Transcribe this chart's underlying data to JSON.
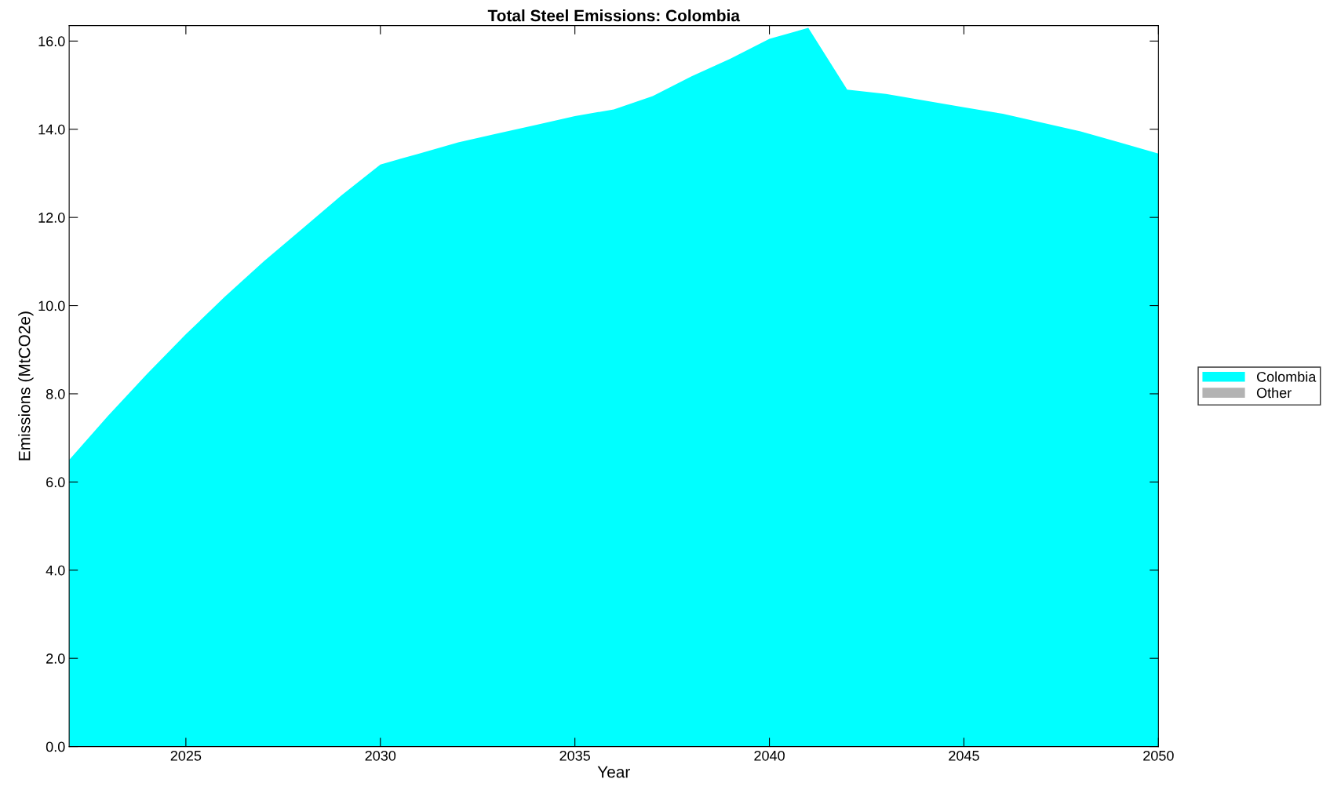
{
  "chart_data": {
    "type": "area",
    "title": "Total Steel Emissions: Colombia",
    "xlabel": "Year",
    "ylabel": "Emissions (MtCO2e)",
    "x": [
      2022,
      2023,
      2024,
      2025,
      2026,
      2027,
      2028,
      2029,
      2030,
      2031,
      2032,
      2033,
      2034,
      2035,
      2036,
      2037,
      2038,
      2039,
      2040,
      2041,
      2042,
      2043,
      2044,
      2045,
      2046,
      2047,
      2048,
      2049,
      2050
    ],
    "series": [
      {
        "name": "Colombia",
        "color": "#00ffff",
        "values": [
          6.5,
          7.5,
          8.45,
          9.35,
          10.2,
          11.0,
          11.75,
          12.5,
          13.2,
          13.45,
          13.7,
          13.9,
          14.1,
          14.3,
          14.45,
          14.75,
          15.2,
          15.6,
          16.05,
          16.3,
          14.9,
          14.8,
          14.65,
          14.5,
          14.35,
          14.15,
          13.95,
          13.7,
          13.45
        ]
      },
      {
        "name": "Other",
        "color": "#b3b3b3",
        "values": [
          null,
          null,
          null,
          null,
          null,
          null,
          null,
          null,
          null,
          null,
          null,
          null,
          null,
          null,
          null,
          null,
          null,
          null,
          null,
          null,
          null,
          null,
          null,
          null,
          null,
          null,
          null,
          null,
          null
        ]
      }
    ],
    "xlim": [
      2022,
      2050
    ],
    "xticks": [
      2025,
      2030,
      2035,
      2040,
      2045,
      2050
    ],
    "ylim": [
      0,
      16.35
    ],
    "yticks": [
      {
        "value": 0,
        "label": "0.0"
      },
      {
        "value": 2,
        "label": "2.0"
      },
      {
        "value": 4,
        "label": "4.0"
      },
      {
        "value": 6,
        "label": "6.0"
      },
      {
        "value": 8,
        "label": "8.0"
      },
      {
        "value": 10,
        "label": "10.0"
      },
      {
        "value": 12,
        "label": "12.0"
      },
      {
        "value": 14,
        "label": "14.0"
      },
      {
        "value": 16,
        "label": "16.0"
      }
    ],
    "grid": false,
    "legend": "right"
  }
}
